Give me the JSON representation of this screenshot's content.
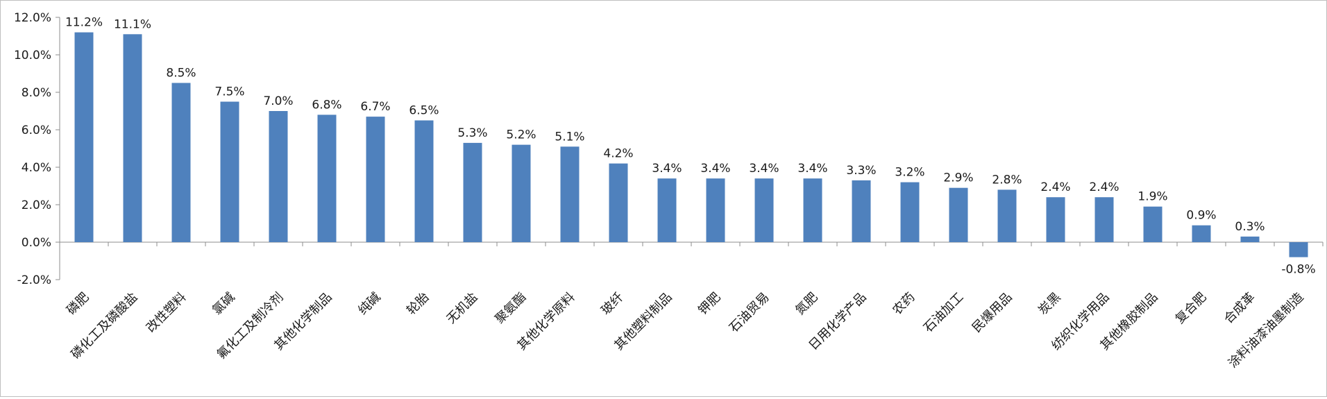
{
  "chart_data": {
    "type": "bar",
    "title": "",
    "xlabel": "",
    "ylabel": "",
    "ylim": [
      -2.0,
      12.0
    ],
    "yticks": [
      "12.0%",
      "10.0%",
      "8.0%",
      "6.0%",
      "4.0%",
      "2.0%",
      "0.0%",
      "-2.0%"
    ],
    "ytick_values": [
      12,
      10,
      8,
      6,
      4,
      2,
      0,
      -2
    ],
    "grid": false,
    "legend": "none",
    "bar_color": "#4f81bd",
    "categories": [
      "磷肥",
      "磷化工及磷酸盐",
      "改性塑料",
      "氯碱",
      "氟化工及制冷剂",
      "其他化学制品",
      "纯碱",
      "轮胎",
      "无机盐",
      "聚氨酯",
      "其他化学原料",
      "玻纤",
      "其他塑料制品",
      "钾肥",
      "石油贸易",
      "氮肥",
      "日用化学产品",
      "农药",
      "石油加工",
      "民爆用品",
      "炭黑",
      "纺织化学用品",
      "其他橡胶制品",
      "复合肥",
      "合成革",
      "涂料油漆油墨制造"
    ],
    "values": [
      11.2,
      11.1,
      8.5,
      7.5,
      7.0,
      6.8,
      6.7,
      6.5,
      5.3,
      5.2,
      5.1,
      4.2,
      3.4,
      3.4,
      3.4,
      3.4,
      3.3,
      3.2,
      2.9,
      2.8,
      2.4,
      2.4,
      1.9,
      0.9,
      0.3,
      -0.8
    ],
    "data_labels": [
      "11.2%",
      "11.1%",
      "8.5%",
      "7.5%",
      "7.0%",
      "6.8%",
      "6.7%",
      "6.5%",
      "5.3%",
      "5.2%",
      "5.1%",
      "4.2%",
      "3.4%",
      "3.4%",
      "3.4%",
      "3.4%",
      "3.3%",
      "3.2%",
      "2.9%",
      "2.8%",
      "2.4%",
      "2.4%",
      "1.9%",
      "0.9%",
      "0.3%",
      "-0.8%"
    ]
  }
}
